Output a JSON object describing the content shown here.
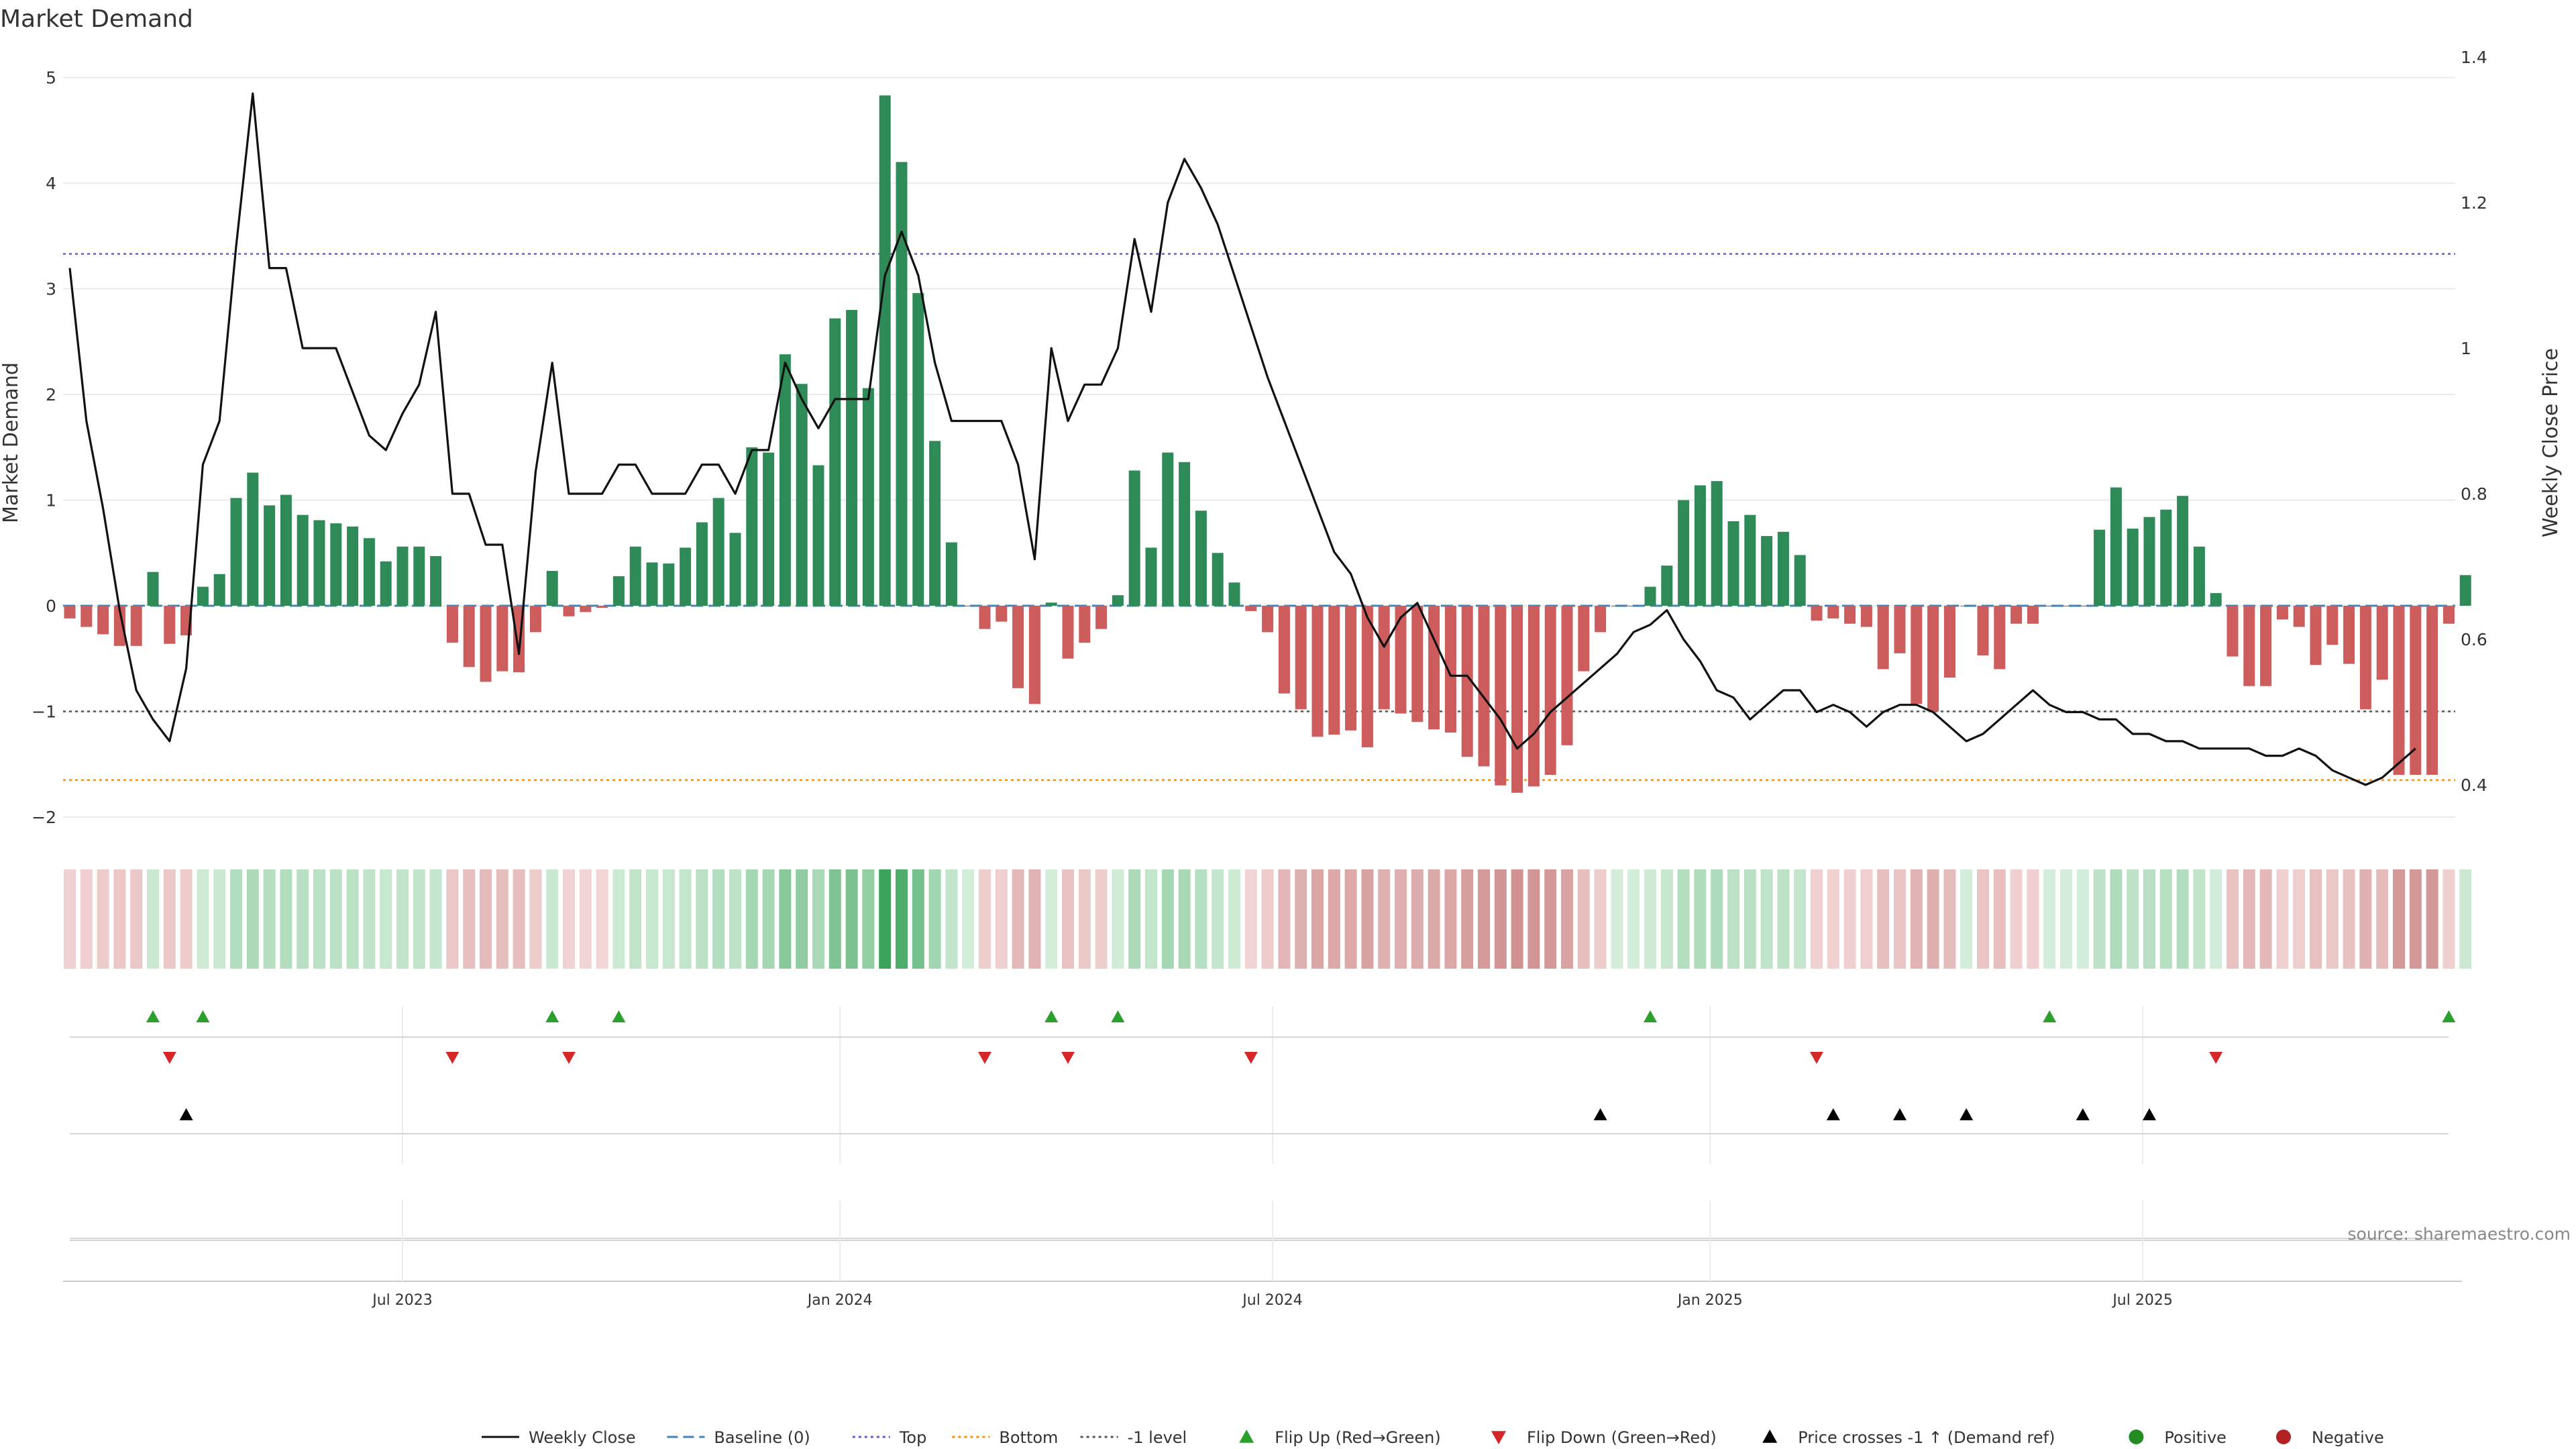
{
  "chart_data": {
    "type": "bar",
    "title": "Market Demand",
    "ylabel": "Market Demand",
    "y2label": "Weekly Close Price",
    "ylim": [
      -2.25,
      5.15
    ],
    "y2lim": [
      0.355,
      1.405
    ],
    "yticks": [
      "5",
      "4",
      "3",
      "2",
      "1",
      "0",
      "−1",
      "−2"
    ],
    "yticks_values": [
      5,
      4,
      3,
      2,
      1,
      0,
      -1,
      -2
    ],
    "y2ticks": [
      "1.4",
      "1.2",
      "1",
      "0.8",
      "0.6",
      "0.4"
    ],
    "y2ticks_values": [
      1.4,
      1.2,
      1.0,
      0.8,
      0.6,
      0.4
    ],
    "xticks": [
      {
        "label": "Jul 2023",
        "week": 20
      },
      {
        "label": "Jan 2024",
        "week": 46.3
      },
      {
        "label": "Jul 2024",
        "week": 72.3
      },
      {
        "label": "Jan 2025",
        "week": 98.6
      },
      {
        "label": "Jul 2025",
        "week": 124.6
      }
    ],
    "reference_lines": {
      "top": 3.33,
      "bottom": -1.65,
      "minus_one": -1.0,
      "baseline": 0
    },
    "demand": [
      -0.12,
      -0.2,
      -0.27,
      -0.38,
      -0.38,
      0.32,
      -0.36,
      -0.28,
      0.18,
      0.3,
      1.02,
      1.26,
      0.95,
      1.05,
      0.86,
      0.81,
      0.78,
      0.75,
      0.64,
      0.42,
      0.56,
      0.56,
      0.47,
      -0.35,
      -0.58,
      -0.72,
      -0.62,
      -0.63,
      -0.25,
      0.33,
      -0.1,
      -0.06,
      -0.02,
      0.28,
      0.56,
      0.41,
      0.4,
      0.55,
      0.79,
      1.02,
      0.69,
      1.5,
      1.45,
      2.38,
      2.1,
      1.33,
      2.72,
      2.8,
      2.06,
      4.83,
      4.2,
      2.96,
      1.56,
      0.6,
      0.0,
      -0.22,
      -0.15,
      -0.78,
      -0.93,
      0.03,
      -0.5,
      -0.35,
      -0.22,
      0.1,
      1.28,
      0.55,
      1.45,
      1.36,
      0.9,
      0.5,
      0.22,
      -0.05,
      -0.25,
      -0.83,
      -0.98,
      -1.24,
      -1.22,
      -1.18,
      -1.34,
      -0.98,
      -1.02,
      -1.1,
      -1.17,
      -1.2,
      -1.43,
      -1.52,
      -1.7,
      -1.77,
      -1.71,
      -1.6,
      -1.32,
      -0.62,
      -0.25,
      0.0,
      0.0,
      0.18,
      0.38,
      1.0,
      1.14,
      1.18,
      0.8,
      0.86,
      0.66,
      0.7,
      0.48,
      -0.14,
      -0.12,
      -0.17,
      -0.2,
      -0.6,
      -0.45,
      -0.93,
      -1.0,
      -0.68,
      0.0,
      -0.47,
      -0.6,
      -0.17,
      -0.17,
      0.0,
      0.0,
      0.0,
      0.72,
      1.12,
      0.73,
      0.84,
      0.91,
      1.04,
      0.56,
      0.12,
      -0.48,
      -0.76,
      -0.76,
      -0.13,
      -0.2,
      -0.56,
      -0.37,
      -0.55,
      -0.98,
      -0.7,
      -1.6,
      -1.6,
      -1.6,
      -0.17,
      0.29
    ],
    "weekly_close": [
      1.11,
      0.9,
      0.78,
      0.64,
      0.53,
      0.49,
      0.46,
      0.56,
      0.84,
      0.9,
      1.14,
      1.35,
      1.11,
      1.11,
      1.0,
      1.0,
      1.0,
      0.94,
      0.88,
      0.86,
      0.91,
      0.95,
      1.05,
      0.8,
      0.8,
      0.73,
      0.73,
      0.58,
      0.83,
      0.98,
      0.8,
      0.8,
      0.8,
      0.84,
      0.84,
      0.8,
      0.8,
      0.8,
      0.84,
      0.84,
      0.8,
      0.86,
      0.86,
      0.98,
      0.93,
      0.89,
      0.93,
      0.93,
      0.93,
      1.1,
      1.16,
      1.1,
      0.98,
      0.9,
      0.9,
      0.9,
      0.9,
      0.84,
      0.71,
      1.0,
      0.9,
      0.95,
      0.95,
      1.0,
      1.15,
      1.05,
      1.2,
      1.26,
      1.22,
      1.17,
      1.1,
      1.03,
      0.96,
      0.9,
      0.84,
      0.78,
      0.72,
      0.69,
      0.63,
      0.59,
      0.63,
      0.65,
      0.6,
      0.55,
      0.55,
      0.52,
      0.49,
      0.45,
      0.47,
      0.5,
      0.52,
      0.54,
      0.56,
      0.58,
      0.61,
      0.62,
      0.64,
      0.6,
      0.57,
      0.53,
      0.52,
      0.49,
      0.51,
      0.53,
      0.53,
      0.5,
      0.51,
      0.5,
      0.48,
      0.5,
      0.51,
      0.51,
      0.5,
      0.48,
      0.46,
      0.47,
      0.49,
      0.51,
      0.53,
      0.51,
      0.5,
      0.5,
      0.49,
      0.49,
      0.47,
      0.47,
      0.46,
      0.46,
      0.45,
      0.45,
      0.45,
      0.45,
      0.44,
      0.44,
      0.45,
      0.44,
      0.42,
      0.41,
      0.4,
      0.41,
      0.43,
      0.45
    ],
    "flip_up_weeks": [
      5,
      8,
      29,
      33,
      59,
      63,
      95,
      119,
      143
    ],
    "flip_down_weeks": [
      6,
      23,
      30,
      55,
      60,
      71,
      105,
      129
    ],
    "price_cross_weeks": [
      7,
      92,
      106,
      110,
      114,
      121,
      125
    ],
    "source": "source: sharemaestro.com",
    "legend": [
      {
        "label": "Weekly Close",
        "kind": "line"
      },
      {
        "label": "Baseline (0)",
        "kind": "dash-blue"
      },
      {
        "label": "Top",
        "kind": "dot-purple"
      },
      {
        "label": "Bottom",
        "kind": "dot-orange"
      },
      {
        "label": "-1 level",
        "kind": "dash-grey"
      },
      {
        "label": "Flip Up (Red→Green)",
        "kind": "tri-up-green"
      },
      {
        "label": "Flip Down (Green→Red)",
        "kind": "tri-down-red"
      },
      {
        "label": "Price crosses -1 ↑ (Demand ref)",
        "kind": "tri-up-black"
      },
      {
        "label": "Positive",
        "kind": "dot-green"
      },
      {
        "label": "Negative",
        "kind": "dot-red"
      }
    ],
    "colors": {
      "positive": "#2e8b57",
      "negative": "#cd5c5c",
      "line": "#111111",
      "top": "#6a5acd",
      "bottom": "#ff8c00",
      "minus_one": "#555555",
      "baseline": "#4682b4",
      "flip_up": "#2ca02c",
      "flip_down": "#d62728",
      "cross": "#000000",
      "dot_pos": "#228b22",
      "dot_neg": "#b22222"
    }
  }
}
